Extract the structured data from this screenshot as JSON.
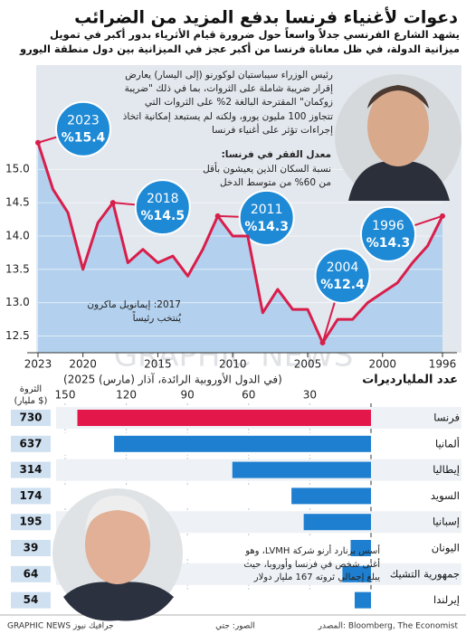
{
  "header": {
    "title": "دعوات لأغنياء فرنسا بدفع المزيد من الضرائب",
    "subtitle": "يشهد الشارع الفرنسي جدلاً واسعاً حول ضرورة قيام الأثرياء بدور أكبر في تمويل ميزانية الدولة، في ظل معاناة فرنسا من أكبر عجز في الميزانية بين دول منطقة اليورو"
  },
  "chart_data": [
    {
      "type": "line",
      "x": [
        1996,
        1997,
        1998,
        1999,
        2000,
        2001,
        2002,
        2003,
        2004,
        2005,
        2006,
        2007,
        2008,
        2009,
        2010,
        2011,
        2012,
        2013,
        2014,
        2015,
        2016,
        2017,
        2018,
        2019,
        2020,
        2021,
        2022,
        2023
      ],
      "values": [
        14.3,
        13.85,
        13.6,
        13.3,
        13.15,
        13.0,
        12.75,
        12.75,
        12.4,
        12.9,
        12.9,
        13.2,
        12.85,
        14.0,
        14.0,
        14.3,
        13.8,
        13.4,
        13.7,
        13.6,
        13.8,
        13.6,
        14.5,
        14.2,
        13.5,
        14.35,
        14.7,
        15.4
      ],
      "color": "#d81e4b",
      "area_color": "#b3d1ee",
      "xlim": [
        1996,
        2023
      ],
      "x_reversed": true,
      "xticks": [
        2023,
        2020,
        2015,
        2010,
        2005,
        2000,
        1996
      ],
      "ylim": [
        12.25,
        15.6
      ],
      "yticks": [
        12.5,
        {
          "value": 13,
          "label": "13.0"
        },
        13.5,
        {
          "value": 14,
          "label": "14.0"
        },
        14.5,
        {
          "value": 15,
          "label": "15.0"
        }
      ],
      "annotations": [
        {
          "x": 2023,
          "value": 15.4,
          "label": "%15.4"
        },
        {
          "x": 2018,
          "value": 14.5,
          "label": "%14.5"
        },
        {
          "x": 2011,
          "value": 14.3,
          "label": "%14.3"
        },
        {
          "x": 2004,
          "value": 12.4,
          "label": "%12.4"
        },
        {
          "x": 1996,
          "value": 14.3,
          "label": "%14.3"
        }
      ],
      "callout_color": "#1e8ad6",
      "lecornu_note": "رئيس الوزراء سيباستيان لوكورنو (إلى اليسار) يعارض إقرار ضريبة شاملة على الثروات، بما في ذلك \"ضريبة زوكمان\" المقترحة البالغة 2% على الثروات التي تتجاوز 100 مليون يورو، ولكنه لم يستبعد إمكانية اتخاذ إجراءات تؤثر على أغنياء فرنسا",
      "poverty_title": "معدل الفقر في فرنسا:",
      "poverty_text": "نسبة السكان الذين يعيشون بأقل من 60% من متوسط الدخل",
      "macron_note": "2017: إيمانويل ماكرون يُنتخب رئيساً"
    },
    {
      "type": "hbar",
      "title": "عدد المليارديرات",
      "subtitle": "(في الدول الأوروبية الرائدة، آذار (مارس) 2025)",
      "categories": [
        "فرنسا",
        "ألمانيا",
        "إيطاليا",
        "السويد",
        "إسبانيا",
        "اليونان",
        "جمهورية التشيك",
        "إيرلندا"
      ],
      "values": [
        144,
        126,
        68,
        39,
        33,
        10,
        14,
        8
      ],
      "colors": [
        "#e4174b",
        "#1e7fd0",
        "#1e7fd0",
        "#1e7fd0",
        "#1e7fd0",
        "#1e7fd0",
        "#1e7fd0",
        "#1e7fd0"
      ],
      "xlim": [
        0,
        150
      ],
      "x_reversed": true,
      "xticks": [
        150,
        120,
        90,
        60,
        30
      ],
      "wealth_title": [
        "الثروة",
        "(مليار $)"
      ],
      "wealth": [
        730,
        637,
        314,
        174,
        195,
        39,
        64,
        54
      ],
      "arnault_note": "أسس برنارد أرنو شركة LVMH، وهو أغنى شخص في فرنسا وأوروبا، حيث يبلغ إجمالي ثروته 167 مليار دولار"
    }
  ],
  "footer": {
    "source": "المصدر: Bloomberg, The Economist",
    "photos": "الصور: جتي",
    "brand": "GRAPHIC NEWS جرافيك نيوز",
    "watermark": "GRAPHIC NEWS"
  }
}
